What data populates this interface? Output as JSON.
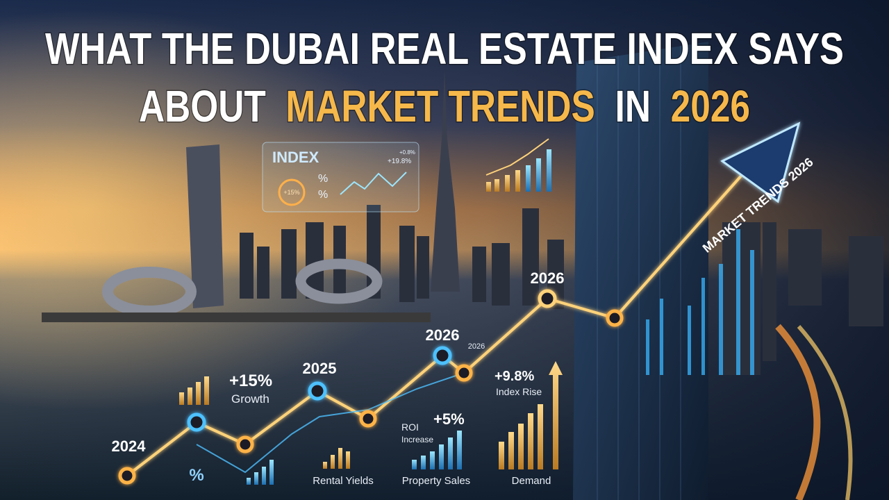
{
  "title": {
    "line1": "WHAT THE DUBAI REAL ESTATE INDEX SAYS",
    "line2_start": "ABOUT",
    "line2_highlight": "MARKET TRENDS",
    "line2_mid": "IN",
    "line2_year": "2026"
  },
  "index_panel": {
    "heading": "INDEX",
    "percent_top": "%",
    "percent_bottom": "%",
    "ring_value": "+15%",
    "change_top": "+0.8%",
    "change_main": "+19.8%"
  },
  "arrow_label": "MARKET TRENDS 2026",
  "year_labels": {
    "start": "2024",
    "mid": "2025",
    "node_a": "2026",
    "node_a_small": "2026",
    "node_b": "2026"
  },
  "callouts": {
    "growth": {
      "value": "+15%",
      "label": "Growth"
    },
    "percent": {
      "value": "%"
    },
    "rental": {
      "label": "Rental Yields"
    },
    "roi": {
      "label_top": "ROI",
      "label_bottom": "Increase",
      "value": "+5%",
      "caption": "Property Sales"
    },
    "index": {
      "value": "+9.8%",
      "label": "Index Rise",
      "caption": "Demand"
    }
  }
}
